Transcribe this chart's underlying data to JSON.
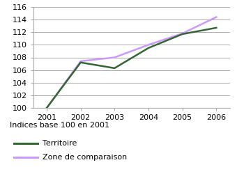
{
  "years": [
    2001,
    2002,
    2003,
    2004,
    2005,
    2006
  ],
  "territoire": [
    100.0,
    107.2,
    106.3,
    109.5,
    111.7,
    112.7
  ],
  "zone_comparaison": [
    100.0,
    107.4,
    108.0,
    110.0,
    111.8,
    114.4
  ],
  "territoire_color": "#336633",
  "zone_color": "#cc99ff",
  "ylim": [
    100,
    116
  ],
  "yticks": [
    100,
    102,
    104,
    106,
    108,
    110,
    112,
    114,
    116
  ],
  "label_indices": "Indices base 100 en 2001",
  "label_territoire": "Territoire",
  "label_zone": "Zone de comparaison",
  "bg_color": "#ffffff",
  "grid_color": "#aaaaaa",
  "linewidth": 1.8,
  "tick_fontsize": 8,
  "legend_fontsize": 8
}
